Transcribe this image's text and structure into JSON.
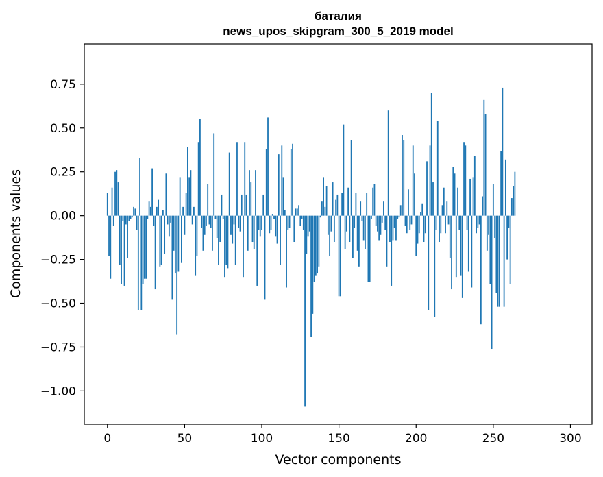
{
  "chart_data": {
    "type": "bar",
    "title": "баталия",
    "subtitle": "news_upos_skipgram_300_5_2019 model",
    "xlabel": "Vector components",
    "ylabel": "Components values",
    "xlim": [
      -15,
      314
    ],
    "ylim": [
      -1.19,
      0.98
    ],
    "xticks": [
      0,
      50,
      100,
      150,
      200,
      250,
      300
    ],
    "yticks": [
      -1.0,
      -0.75,
      -0.5,
      -0.25,
      0.0,
      0.25,
      0.5,
      0.75
    ],
    "ytick_labels": [
      "−1.00",
      "−0.75",
      "−0.50",
      "−0.25",
      "0.00",
      "0.25",
      "0.50",
      "0.75"
    ],
    "bar_color": "#1f77b4",
    "values": [
      0.13,
      -0.23,
      -0.36,
      0.16,
      -0.06,
      0.25,
      0.26,
      0.19,
      -0.28,
      -0.39,
      -0.03,
      -0.4,
      -0.05,
      -0.24,
      -0.03,
      -0.02,
      -0.01,
      0.05,
      0.04,
      -0.08,
      -0.54,
      0.33,
      -0.54,
      -0.39,
      -0.36,
      -0.36,
      -0.02,
      0.08,
      0.05,
      0.27,
      -0.06,
      -0.42,
      0.05,
      0.09,
      -0.29,
      -0.28,
      0.03,
      -0.22,
      0.24,
      -0.05,
      -0.12,
      -0.04,
      -0.48,
      -0.2,
      -0.33,
      -0.68,
      -0.32,
      0.22,
      -0.27,
      0.05,
      -0.11,
      0.13,
      0.39,
      0.22,
      0.26,
      -0.05,
      0.05,
      -0.34,
      -0.23,
      0.42,
      0.55,
      -0.07,
      -0.2,
      -0.11,
      -0.06,
      0.18,
      -0.05,
      -0.07,
      -0.2,
      0.47,
      -0.02,
      -0.13,
      -0.28,
      -0.15,
      0.12,
      -0.02,
      -0.35,
      -0.28,
      -0.3,
      0.36,
      -0.11,
      -0.16,
      -0.05,
      -0.28,
      0.42,
      -0.07,
      -0.09,
      0.12,
      -0.35,
      0.42,
      0.12,
      -0.2,
      0.26,
      0.19,
      -0.15,
      -0.19,
      0.26,
      -0.4,
      -0.08,
      -0.12,
      -0.08,
      0.12,
      -0.48,
      0.38,
      0.56,
      -0.1,
      -0.08,
      0.01,
      -0.02,
      -0.12,
      -0.16,
      0.35,
      -0.28,
      0.4,
      0.22,
      0.03,
      -0.41,
      -0.08,
      -0.07,
      0.38,
      0.41,
      -0.15,
      0.04,
      0.04,
      0.06,
      -0.06,
      -0.02,
      -0.08,
      -1.09,
      -0.22,
      -0.12,
      -0.09,
      -0.69,
      -0.56,
      -0.38,
      -0.34,
      -0.33,
      -0.29,
      -0.01,
      0.08,
      0.22,
      0.05,
      0.17,
      -0.11,
      -0.23,
      -0.09,
      0.19,
      -0.15,
      0.09,
      0.12,
      -0.46,
      -0.46,
      0.13,
      0.52,
      -0.19,
      -0.09,
      0.16,
      -0.15,
      0.43,
      -0.24,
      -0.07,
      0.13,
      -0.2,
      -0.29,
      0.08,
      -0.03,
      -0.14,
      -0.19,
      0.13,
      -0.38,
      -0.38,
      -0.02,
      0.16,
      0.18,
      -0.06,
      -0.09,
      -0.14,
      -0.11,
      -0.04,
      0.08,
      -0.08,
      -0.29,
      0.6,
      -0.15,
      -0.4,
      -0.14,
      -0.07,
      -0.14,
      -0.02,
      -0.01,
      0.06,
      0.46,
      0.43,
      -0.06,
      -0.1,
      0.15,
      -0.08,
      -0.05,
      0.4,
      0.24,
      -0.23,
      -0.16,
      -0.1,
      0.02,
      0.07,
      -0.15,
      -0.1,
      0.31,
      -0.54,
      0.4,
      0.7,
      0.19,
      -0.58,
      -0.08,
      0.54,
      -0.15,
      -0.1,
      0.06,
      0.16,
      -0.1,
      0.08,
      -0.05,
      -0.24,
      -0.42,
      0.28,
      0.24,
      -0.35,
      0.16,
      -0.08,
      -0.34,
      -0.47,
      0.42,
      0.4,
      -0.08,
      -0.32,
      0.21,
      -0.41,
      0.22,
      0.34,
      -0.1,
      -0.07,
      -0.05,
      -0.62,
      0.11,
      0.66,
      0.58,
      -0.2,
      -0.11,
      -0.39,
      -0.76,
      0.18,
      -0.13,
      -0.44,
      -0.52,
      -0.52,
      0.37,
      0.73,
      -0.52,
      0.32,
      -0.25,
      -0.07,
      -0.39,
      0.1,
      0.17,
      0.25
    ]
  }
}
